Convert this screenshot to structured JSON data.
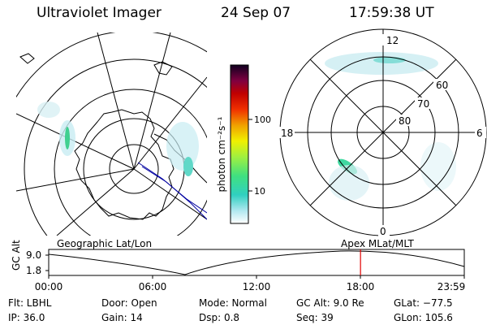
{
  "header": {
    "title": "Ultraviolet Imager",
    "date": "24 Sep 07",
    "time": "17:59:38 UT"
  },
  "colorbar": {
    "unit_label": "photon cm⁻²s⁻¹",
    "ticks": [
      "100",
      "10"
    ]
  },
  "polar_plot": {
    "mlt_labels": {
      "top": "12",
      "left": "18",
      "right": "6",
      "bottom": "0"
    },
    "lat_labels": [
      "60",
      "70",
      "80"
    ]
  },
  "timeline": {
    "left_caption": "Geographic Lat/Lon",
    "right_caption": "Apex MLat/MLT",
    "ylabel": "GC Alt",
    "y_ticks": [
      "9.0",
      "1.8"
    ],
    "x_ticks": [
      "00:00",
      "06:00",
      "12:00",
      "18:00",
      "23:59"
    ],
    "current_time_frac": 0.7503
  },
  "info": {
    "row1": [
      {
        "key": "Flt:",
        "val": "LBHL"
      },
      {
        "key": "Door:",
        "val": "Open"
      },
      {
        "key": "Mode:",
        "val": "Normal"
      },
      {
        "key": "GC Alt:",
        "val": "9.0 Re"
      },
      {
        "key": "GLat:",
        "val": "−77.5"
      }
    ],
    "row2": [
      {
        "key": "IP:",
        "val": "36.0"
      },
      {
        "key": "Gain:",
        "val": "14"
      },
      {
        "key": "Dsp:",
        "val": "0.8"
      },
      {
        "key": "Seq:",
        "val": "39"
      },
      {
        "key": "GLon:",
        "val": "105.6"
      }
    ]
  },
  "colors": {
    "marker": "#e00000",
    "coast_line": "#0000a0"
  }
}
